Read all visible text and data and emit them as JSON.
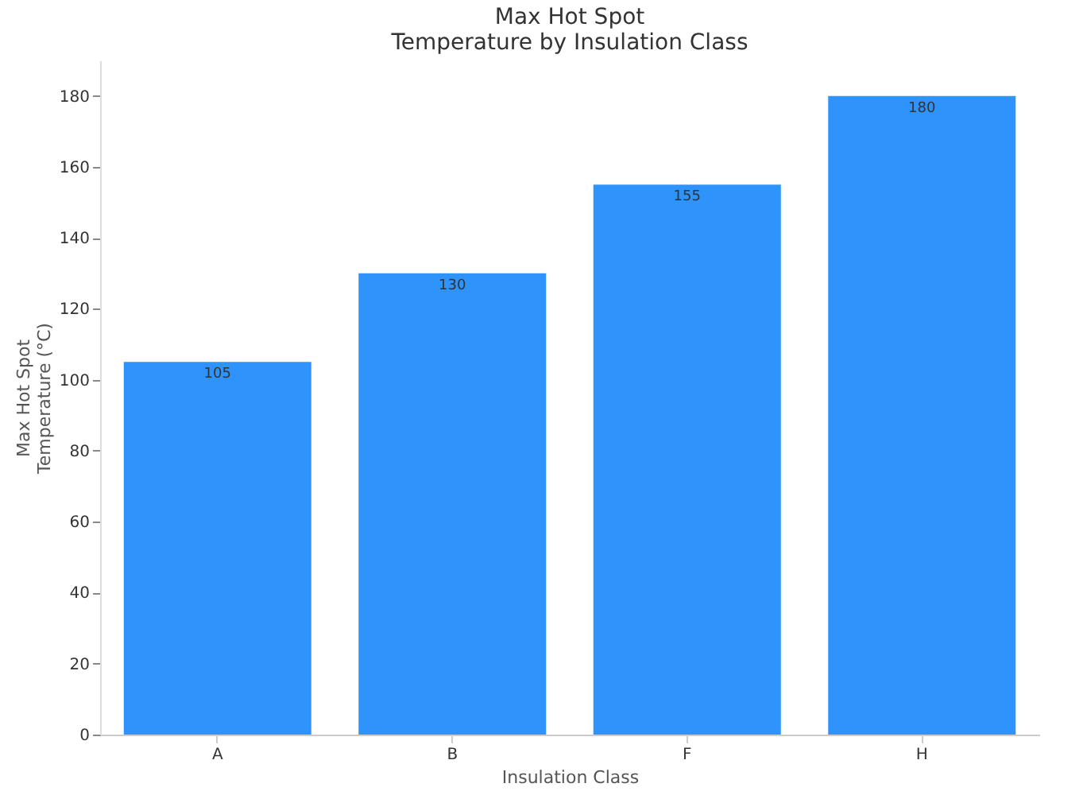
{
  "chart_data": {
    "type": "bar",
    "title": "Max Hot Spot\nTemperature by Insulation Class",
    "xlabel": "Insulation Class",
    "ylabel": "Max Hot Spot\nTemperature (°C)",
    "categories": [
      "A",
      "B",
      "F",
      "H"
    ],
    "values": [
      105,
      130,
      155,
      180
    ],
    "color": "#2e93fa",
    "ylim": [
      0,
      190
    ],
    "yticks": [
      0,
      20,
      40,
      60,
      80,
      100,
      120,
      140,
      160,
      180
    ],
    "grid": false,
    "data_labels": true
  }
}
